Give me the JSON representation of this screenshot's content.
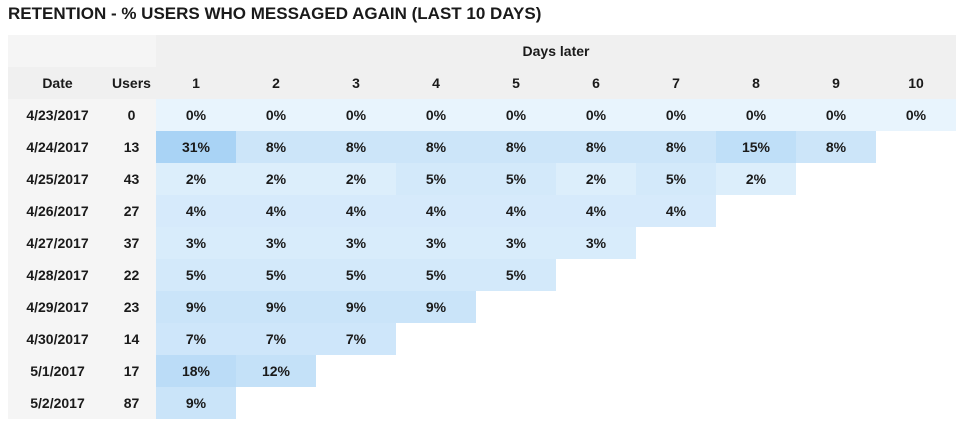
{
  "title": "RETENTION - % USERS WHO MESSAGED AGAIN (LAST 10 DAYS)",
  "headers": {
    "band": "Days later",
    "date": "Date",
    "users": "Users",
    "days": [
      "1",
      "2",
      "3",
      "4",
      "5",
      "6",
      "7",
      "8",
      "9",
      "10"
    ]
  },
  "chart_data": {
    "type": "heatmap",
    "title": "RETENTION - % USERS WHO MESSAGED AGAIN (LAST 10 DAYS)",
    "xlabel": "Days later",
    "x": [
      "1",
      "2",
      "3",
      "4",
      "5",
      "6",
      "7",
      "8",
      "9",
      "10"
    ],
    "rows": [
      {
        "date": "4/23/2017",
        "users": "0",
        "values": [
          0,
          0,
          0,
          0,
          0,
          0,
          0,
          0,
          0,
          0
        ]
      },
      {
        "date": "4/24/2017",
        "users": "13",
        "values": [
          31,
          8,
          8,
          8,
          8,
          8,
          8,
          15,
          8
        ]
      },
      {
        "date": "4/25/2017",
        "users": "43",
        "values": [
          2,
          2,
          2,
          5,
          5,
          2,
          5,
          2
        ]
      },
      {
        "date": "4/26/2017",
        "users": "27",
        "values": [
          4,
          4,
          4,
          4,
          4,
          4,
          4
        ]
      },
      {
        "date": "4/27/2017",
        "users": "37",
        "values": [
          3,
          3,
          3,
          3,
          3,
          3
        ]
      },
      {
        "date": "4/28/2017",
        "users": "22",
        "values": [
          5,
          5,
          5,
          5,
          5
        ]
      },
      {
        "date": "4/29/2017",
        "users": "23",
        "values": [
          9,
          9,
          9,
          9
        ]
      },
      {
        "date": "4/30/2017",
        "users": "14",
        "values": [
          7,
          7,
          7
        ]
      },
      {
        "date": "5/1/2017",
        "users": "17",
        "values": [
          18,
          12
        ]
      },
      {
        "date": "5/2/2017",
        "users": "87",
        "values": [
          9
        ]
      }
    ],
    "value_unit": "%",
    "color_low": "#e8f4fd",
    "color_high": "#a9d3f5"
  }
}
